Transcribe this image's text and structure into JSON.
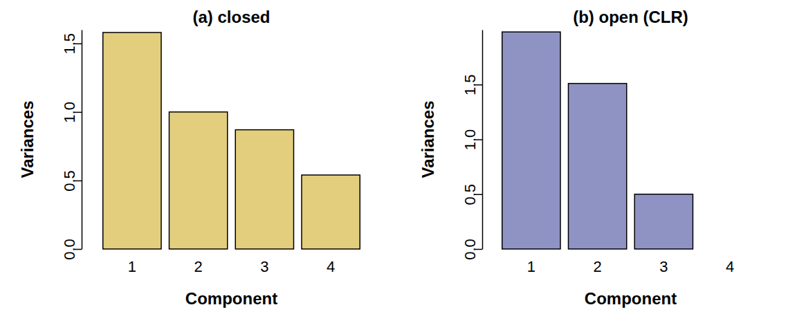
{
  "chart_data": [
    {
      "type": "bar",
      "title": "(a) closed",
      "x_label": "Component",
      "y_label": "Variances",
      "categories": [
        "1",
        "2",
        "3",
        "4"
      ],
      "values": [
        1.58,
        1.0,
        0.87,
        0.54
      ],
      "color": "#e3ce7e",
      "ylim": [
        0,
        1.6
      ],
      "yticks": [
        {
          "value": 0,
          "label": "0.0"
        },
        {
          "value": 0.5,
          "label": "0.5"
        },
        {
          "value": 1,
          "label": "1.0"
        },
        {
          "value": 1.5,
          "label": "1.5"
        }
      ]
    },
    {
      "type": "bar",
      "title": "(b) open (CLR)",
      "x_label": "Component",
      "y_label": "Variances",
      "categories": [
        "1",
        "2",
        "3",
        "4"
      ],
      "values": [
        1.98,
        1.51,
        0.5,
        0.0
      ],
      "color": "#8f93c4",
      "ylim": [
        0,
        2
      ],
      "yticks": [
        {
          "value": 0,
          "label": "0.0"
        },
        {
          "value": 0.5,
          "label": "0.5"
        },
        {
          "value": 1,
          "label": "1.0"
        },
        {
          "value": 1.5,
          "label": "1.5"
        }
      ]
    }
  ]
}
